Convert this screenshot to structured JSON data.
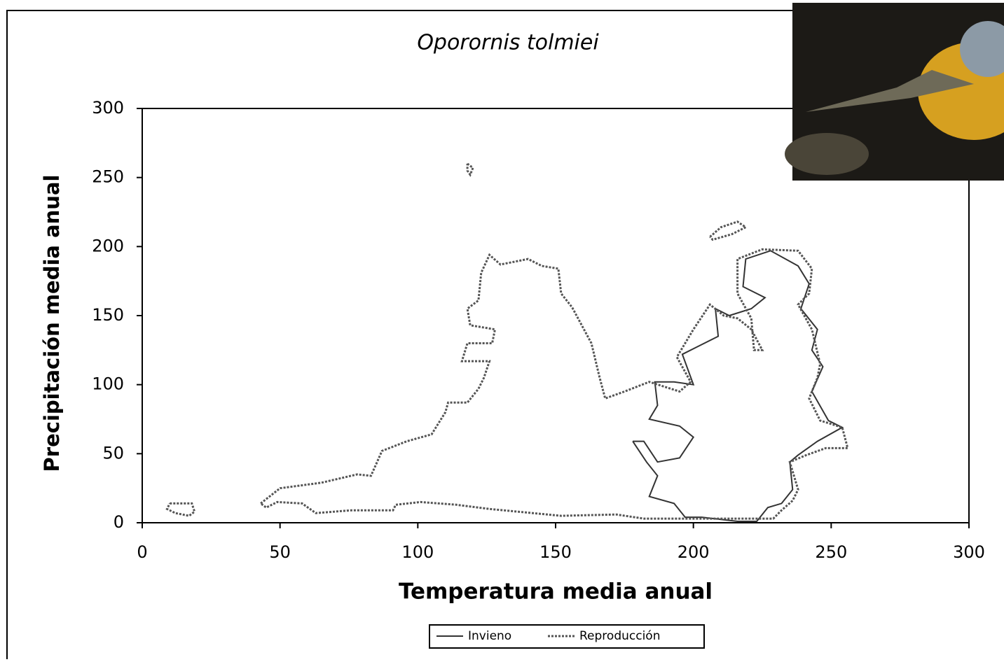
{
  "chart_data": {
    "type": "line",
    "title": "Oporornis tolmiei",
    "xlabel": "Temperatura media anual",
    "ylabel": "Precipitación media anual",
    "xlim": [
      0,
      300
    ],
    "ylim": [
      0,
      300
    ],
    "xticks": [
      0,
      50,
      100,
      150,
      200,
      250,
      300
    ],
    "yticks": [
      0,
      50,
      100,
      150,
      200,
      250,
      300
    ],
    "legend": "bottom",
    "series": [
      {
        "name": "Invieno",
        "color": "#333333",
        "dash": "solid",
        "x": [
          178,
          183,
          187,
          184,
          193,
          197,
          203,
          216,
          223,
          227,
          232,
          236,
          235,
          238,
          245,
          254,
          249,
          243,
          247,
          243,
          245,
          239,
          242,
          238,
          228,
          219,
          218,
          226,
          221,
          213,
          208,
          209,
          201,
          196,
          200,
          193,
          186,
          187,
          184,
          195,
          200,
          195,
          187,
          182,
          178
        ],
        "y": [
          59,
          44,
          34,
          19,
          14,
          4,
          4,
          1,
          1,
          11,
          14,
          24,
          44,
          49,
          59,
          69,
          74,
          95,
          113,
          125,
          140,
          155,
          173,
          186,
          197,
          191,
          171,
          163,
          155,
          150,
          155,
          135,
          127,
          122,
          100,
          102,
          102,
          85,
          75,
          70,
          62,
          47,
          44,
          59,
          59
        ]
      },
      {
        "name": "Reproducción",
        "color": "#555555",
        "dash": "dotted",
        "x": [
          43,
          50,
          65,
          78,
          83,
          87,
          96,
          105,
          110,
          111,
          118,
          122,
          124,
          126,
          116,
          118,
          127,
          128,
          119,
          118,
          122,
          123,
          126,
          130,
          140,
          145,
          151,
          152,
          156,
          163,
          166,
          168,
          175,
          184,
          195,
          199,
          194,
          200,
          206,
          211,
          216,
          221,
          225,
          222,
          221,
          216,
          216,
          225,
          238,
          243,
          242,
          238,
          243,
          246,
          245,
          242,
          246,
          254,
          256,
          248,
          241,
          235,
          238,
          236,
          232,
          229,
          203,
          182,
          172,
          152,
          126,
          114,
          101,
          92,
          91,
          76,
          63,
          58,
          49,
          45,
          43,
          null,
          10,
          18,
          19,
          17,
          12,
          9,
          10,
          null,
          118,
          120,
          119,
          118,
          118,
          null,
          206,
          210,
          216,
          219,
          214,
          207,
          206
        ],
        "y": [
          14,
          25,
          29,
          35,
          34,
          52,
          59,
          64,
          80,
          87,
          87,
          97,
          105,
          117,
          117,
          130,
          130,
          140,
          143,
          155,
          161,
          181,
          194,
          187,
          191,
          186,
          184,
          166,
          156,
          130,
          105,
          90,
          95,
          102,
          95,
          102,
          120,
          140,
          158,
          150,
          148,
          140,
          125,
          125,
          148,
          166,
          191,
          198,
          197,
          184,
          166,
          158,
          140,
          115,
          105,
          90,
          74,
          69,
          54,
          54,
          49,
          44,
          24,
          16,
          9,
          3,
          3,
          3,
          6,
          5,
          10,
          13,
          15,
          13,
          9,
          9,
          7,
          14,
          15,
          11,
          14,
          null,
          14,
          14,
          8,
          5,
          7,
          10,
          14,
          null,
          260,
          257,
          252,
          255,
          260,
          null,
          207,
          214,
          218,
          214,
          209,
          205,
          207
        ]
      }
    ]
  }
}
